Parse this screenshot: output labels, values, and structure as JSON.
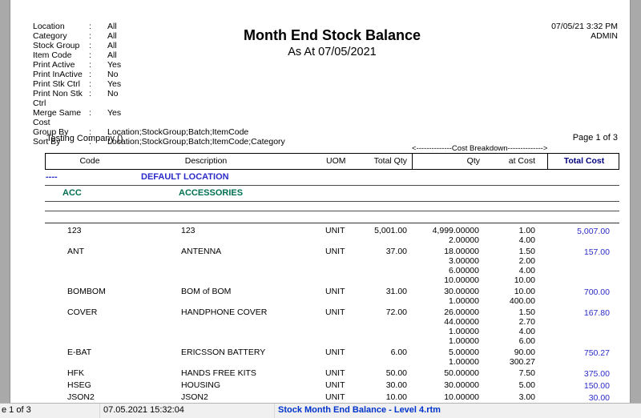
{
  "colors": {
    "pane_gray": "#a9a9a9",
    "report_blue": "#2b2bc8",
    "header_navy": "#000080",
    "group_green": "#007050",
    "status_file_blue": "#0033cc",
    "status_bg": "#f0f0f0"
  },
  "report": {
    "colon": ":",
    "params": [
      {
        "label": "Location",
        "value": "All"
      },
      {
        "label": "Category",
        "value": "All"
      },
      {
        "label": "Stock Group",
        "value": "All"
      },
      {
        "label": "Item Code",
        "value": "All"
      },
      {
        "label": "Print Active",
        "value": "Yes"
      },
      {
        "label": "Print InActive",
        "value": "No"
      },
      {
        "label": "Print Stk Ctrl",
        "value": "Yes"
      },
      {
        "label": "Print Non Stk Ctrl",
        "value": "No"
      },
      {
        "label": "Merge Same Cost",
        "value": "Yes"
      },
      {
        "label": "Group By",
        "value": "Location;StockGroup;Batch;ItemCode"
      },
      {
        "label": "Sort By",
        "value": "Location;StockGroup;Batch;ItemCode;Category"
      }
    ],
    "title": "Month End Stock Balance",
    "subtitle": "As At 07/05/2021",
    "printed_datetime": "07/05/21 3:32 PM",
    "printed_by": "ADMIN",
    "company": "Testing Company ()",
    "page_info": "Page 1 of 3",
    "cost_breakdown_label": "<--------------Cost Breakdown-------------->",
    "table": {
      "headers": {
        "code": "Code",
        "description": "Description",
        "uom": "UOM",
        "total_qty": "Total Qty",
        "qty": "Qty",
        "at_cost": "at Cost",
        "total_cost": "Total Cost"
      },
      "location": {
        "code": "----",
        "name": "DEFAULT LOCATION"
      },
      "group": {
        "code": "ACC",
        "name": "ACCESSORIES"
      },
      "items": [
        {
          "code": "123",
          "description": "123",
          "uom": "UNIT",
          "total_qty": "5,001.00",
          "qty_lines": [
            "4,999.00000",
            "2.00000"
          ],
          "cost_lines": [
            "1.00",
            "4.00"
          ],
          "total_cost": "5,007.00"
        },
        {
          "code": "ANT",
          "description": "ANTENNA",
          "uom": "UNIT",
          "total_qty": "37.00",
          "qty_lines": [
            "18.00000",
            "3.00000",
            "6.00000",
            "10.00000"
          ],
          "cost_lines": [
            "1.50",
            "2.00",
            "4.00",
            "10.00"
          ],
          "total_cost": "157.00"
        },
        {
          "code": "BOMBOM",
          "description": "BOM of BOM",
          "uom": "UNIT",
          "total_qty": "31.00",
          "qty_lines": [
            "30.00000",
            "1.00000"
          ],
          "cost_lines": [
            "10.00",
            "400.00"
          ],
          "total_cost": "700.00"
        },
        {
          "code": "COVER",
          "description": "HANDPHONE COVER",
          "uom": "UNIT",
          "total_qty": "72.00",
          "qty_lines": [
            "26.00000",
            "44.00000",
            "1.00000",
            "1.00000"
          ],
          "cost_lines": [
            "1.50",
            "2.70",
            "4.00",
            "6.00"
          ],
          "total_cost": "167.80"
        },
        {
          "code": "E-BAT",
          "description": "ERICSSON BATTERY",
          "uom": "UNIT",
          "total_qty": "6.00",
          "qty_lines": [
            "5.00000",
            "1.00000"
          ],
          "cost_lines": [
            "90.00",
            "300.27"
          ],
          "total_cost": "750.27"
        },
        {
          "code": "HFK",
          "description": "HANDS FREE KITS",
          "uom": "UNIT",
          "total_qty": "50.00",
          "qty_lines": [
            "50.00000"
          ],
          "cost_lines": [
            "7.50"
          ],
          "total_cost": "375.00"
        },
        {
          "code": "HSEG",
          "description": "HOUSING",
          "uom": "UNIT",
          "total_qty": "30.00",
          "qty_lines": [
            "30.00000"
          ],
          "cost_lines": [
            "5.00"
          ],
          "total_cost": "150.00"
        },
        {
          "code": "JSON2",
          "description": "JSON2",
          "uom": "UNIT",
          "total_qty": "10.00",
          "qty_lines": [
            "10.00000"
          ],
          "cost_lines": [
            "3.00"
          ],
          "total_cost": "30.00"
        }
      ]
    }
  },
  "status_bar": {
    "page_indicator": "e 1 of 3",
    "timestamp": "07.05.2021 15:32:04",
    "report_file": "Stock Month End Balance - Level 4.rtm"
  }
}
